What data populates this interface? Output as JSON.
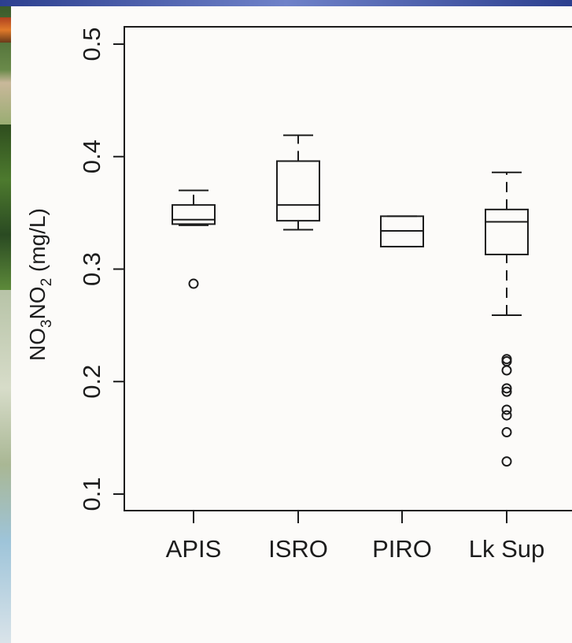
{
  "chart_data": {
    "type": "boxplot",
    "ylabel": "NO3NO2 (mg/L)",
    "ylabel_parts": {
      "a": "NO",
      "sub1": "3",
      "b": "NO",
      "sub2": "2",
      "c": " (mg/L)"
    },
    "ylim": [
      0.1,
      0.5
    ],
    "yticks": [
      0.1,
      0.2,
      0.3,
      0.4,
      0.5
    ],
    "yticklabels": [
      "0.1",
      "0.2",
      "0.3",
      "0.4",
      "0.5"
    ],
    "categories": [
      "APIS",
      "ISRO",
      "PIRO",
      "Lk Sup"
    ],
    "boxes": [
      {
        "name": "APIS",
        "whislo": 0.339,
        "q1": 0.34,
        "med": 0.344,
        "q3": 0.357,
        "whishi": 0.37,
        "fliers": [
          0.287
        ]
      },
      {
        "name": "ISRO",
        "whislo": 0.335,
        "q1": 0.343,
        "med": 0.357,
        "q3": 0.396,
        "whishi": 0.419,
        "fliers": []
      },
      {
        "name": "PIRO",
        "whislo": 0.32,
        "q1": 0.32,
        "med": 0.334,
        "q3": 0.347,
        "whishi": 0.347,
        "fliers": []
      },
      {
        "name": "Lk Sup",
        "whislo": 0.259,
        "q1": 0.313,
        "med": 0.342,
        "q3": 0.353,
        "whishi": 0.386,
        "fliers": [
          0.22,
          0.218,
          0.21,
          0.194,
          0.191,
          0.175,
          0.17,
          0.155,
          0.129
        ]
      }
    ],
    "grid": false,
    "legend": "none"
  }
}
